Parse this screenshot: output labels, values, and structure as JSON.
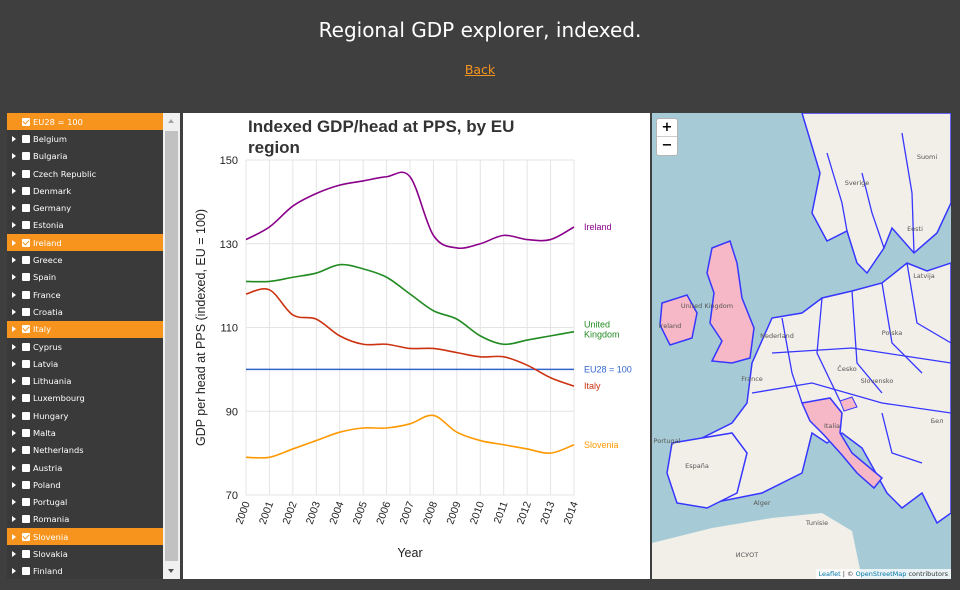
{
  "page": {
    "title": "Regional GDP explorer, indexed.",
    "back_label": "Back"
  },
  "sidebar": {
    "items": [
      {
        "label": "EU28 = 100",
        "selected": true,
        "expandable": false
      },
      {
        "label": "Belgium",
        "selected": false,
        "expandable": true
      },
      {
        "label": "Bulgaria",
        "selected": false,
        "expandable": true
      },
      {
        "label": "Czech Republic",
        "selected": false,
        "expandable": true
      },
      {
        "label": "Denmark",
        "selected": false,
        "expandable": true
      },
      {
        "label": "Germany",
        "selected": false,
        "expandable": true
      },
      {
        "label": "Estonia",
        "selected": false,
        "expandable": true
      },
      {
        "label": "Ireland",
        "selected": true,
        "expandable": true
      },
      {
        "label": "Greece",
        "selected": false,
        "expandable": true
      },
      {
        "label": "Spain",
        "selected": false,
        "expandable": true
      },
      {
        "label": "France",
        "selected": false,
        "expandable": true
      },
      {
        "label": "Croatia",
        "selected": false,
        "expandable": true
      },
      {
        "label": "Italy",
        "selected": true,
        "expandable": true
      },
      {
        "label": "Cyprus",
        "selected": false,
        "expandable": true
      },
      {
        "label": "Latvia",
        "selected": false,
        "expandable": true
      },
      {
        "label": "Lithuania",
        "selected": false,
        "expandable": true
      },
      {
        "label": "Luxembourg",
        "selected": false,
        "expandable": true
      },
      {
        "label": "Hungary",
        "selected": false,
        "expandable": true
      },
      {
        "label": "Malta",
        "selected": false,
        "expandable": true
      },
      {
        "label": "Netherlands",
        "selected": false,
        "expandable": true
      },
      {
        "label": "Austria",
        "selected": false,
        "expandable": true
      },
      {
        "label": "Poland",
        "selected": false,
        "expandable": true
      },
      {
        "label": "Portugal",
        "selected": false,
        "expandable": true
      },
      {
        "label": "Romania",
        "selected": false,
        "expandable": true
      },
      {
        "label": "Slovenia",
        "selected": true,
        "expandable": true
      },
      {
        "label": "Slovakia",
        "selected": false,
        "expandable": true
      },
      {
        "label": "Finland",
        "selected": false,
        "expandable": true
      }
    ]
  },
  "chart_data": {
    "type": "line",
    "title": "Indexed GDP/head at PPS, by EU region",
    "xlabel": "Year",
    "ylabel": "GDP per head at PPS (indexed, EU = 100)",
    "x": [
      2000,
      2001,
      2002,
      2003,
      2004,
      2005,
      2006,
      2007,
      2008,
      2009,
      2010,
      2011,
      2012,
      2013,
      2014
    ],
    "ylim": [
      70,
      150
    ],
    "yticks": [
      70,
      90,
      110,
      130,
      150
    ],
    "grid": true,
    "series": [
      {
        "name": "Ireland",
        "color": "#8b008b",
        "values": [
          131,
          134,
          139,
          142,
          144,
          145,
          146,
          146,
          132,
          129,
          130,
          132,
          131,
          131,
          134
        ]
      },
      {
        "name": "United Kingdom",
        "color": "#228b22",
        "values": [
          121,
          121,
          122,
          123,
          125,
          124,
          122,
          118,
          114,
          112,
          108,
          106,
          107,
          108,
          109
        ]
      },
      {
        "name": "EU28 = 100",
        "color": "#3366cc",
        "values": [
          100,
          100,
          100,
          100,
          100,
          100,
          100,
          100,
          100,
          100,
          100,
          100,
          100,
          100,
          100
        ]
      },
      {
        "name": "Italy",
        "color": "#cc3311",
        "values": [
          118,
          119,
          113,
          112,
          108,
          106,
          106,
          105,
          105,
          104,
          103,
          103,
          101,
          98,
          96
        ]
      },
      {
        "name": "Slovenia",
        "color": "#ff9900",
        "values": [
          79,
          79,
          81,
          83,
          85,
          86,
          86,
          87,
          89,
          85,
          83,
          82,
          81,
          80,
          82
        ]
      }
    ]
  },
  "map": {
    "zoom_in": "+",
    "zoom_out": "−",
    "attribution_leaflet": "Leaflet",
    "attribution_sep": " | © ",
    "attribution_osm": "OpenStreetMap",
    "attribution_rest": " contributors",
    "labels": [
      "Suomi",
      "Sverige",
      "Eesti",
      "Latvija",
      "Ireland",
      "United Kingdom",
      "Nederland",
      "Polska",
      "Česko",
      "Slovensko",
      "France",
      "España",
      "Portugal",
      "Italia",
      "Alger",
      "Tunisie",
      "ИСУОТ",
      "Бел"
    ]
  }
}
